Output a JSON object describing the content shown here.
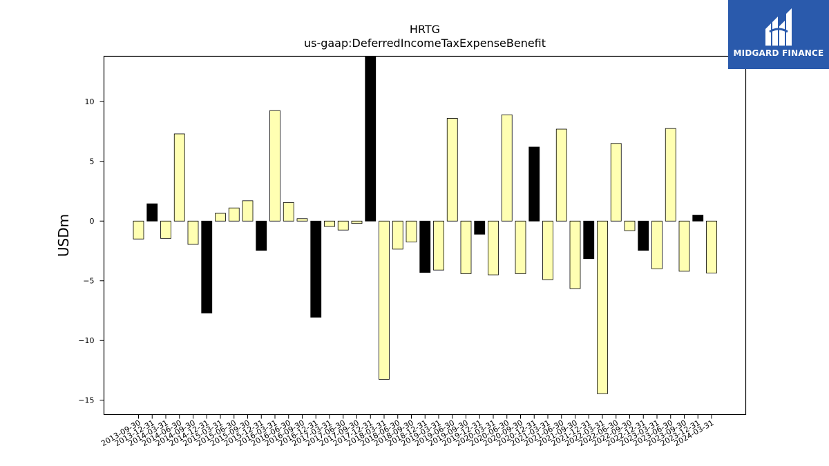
{
  "brand": {
    "name": "MIDGARD FINANCE",
    "color": "#2a5aac"
  },
  "chart_data": {
    "type": "bar",
    "title": "HRTG",
    "subtitle": "us-gaap:DeferredIncomeTaxExpenseBenefit",
    "ylabel": "USDm",
    "xlabel": "",
    "ylim": [
      -16.2,
      13.8
    ],
    "yticks": [
      10,
      5,
      0,
      -5,
      -10,
      -15
    ],
    "ytick_labels": [
      "10",
      "5",
      "0",
      "−5",
      "−10",
      "−15"
    ],
    "grid": false,
    "legend": "none",
    "colors": {
      "default": "#ffffb2",
      "highlight": "#000000",
      "edge": "#000000"
    },
    "categories": [
      "2013-09-30",
      "2013-12-31",
      "2014-03-31",
      "2014-06-30",
      "2014-09-30",
      "2014-12-31",
      "2015-03-31",
      "2015-06-30",
      "2015-09-30",
      "2015-12-31",
      "2016-03-31",
      "2016-06-30",
      "2016-09-30",
      "2016-12-31",
      "2017-03-31",
      "2017-06-30",
      "2017-09-30",
      "2017-12-31",
      "2018-03-31",
      "2018-06-30",
      "2018-09-30",
      "2018-12-31",
      "2019-03-31",
      "2019-06-30",
      "2019-09-30",
      "2019-12-31",
      "2020-03-31",
      "2020-06-30",
      "2020-09-30",
      "2020-12-31",
      "2021-03-31",
      "2021-06-30",
      "2021-09-30",
      "2021-12-31",
      "2022-03-31",
      "2022-06-30",
      "2022-09-30",
      "2022-12-31",
      "2023-03-31",
      "2023-06-30",
      "2023-09-30",
      "2023-12-31",
      "2024-03-31"
    ],
    "values": [
      -1.5,
      1.45,
      -1.45,
      7.3,
      -1.95,
      -7.7,
      0.65,
      1.1,
      1.7,
      -2.45,
      9.25,
      1.55,
      0.2,
      -8.05,
      -0.45,
      -0.75,
      -0.2,
      14.5,
      -13.25,
      -2.35,
      -1.75,
      -4.3,
      -4.1,
      8.6,
      -4.4,
      -1.1,
      -4.5,
      8.9,
      -4.4,
      6.2,
      -4.9,
      7.7,
      -5.65,
      -3.15,
      -14.45,
      6.5,
      -0.8,
      -2.45,
      -4.0,
      7.75,
      -4.2,
      0.5,
      -4.35
    ],
    "highlight": [
      false,
      true,
      false,
      false,
      false,
      true,
      false,
      false,
      false,
      true,
      false,
      false,
      false,
      true,
      false,
      false,
      false,
      true,
      false,
      false,
      false,
      true,
      false,
      false,
      false,
      true,
      false,
      false,
      false,
      true,
      false,
      false,
      false,
      true,
      false,
      false,
      false,
      true,
      false,
      false,
      false,
      true,
      false
    ]
  }
}
